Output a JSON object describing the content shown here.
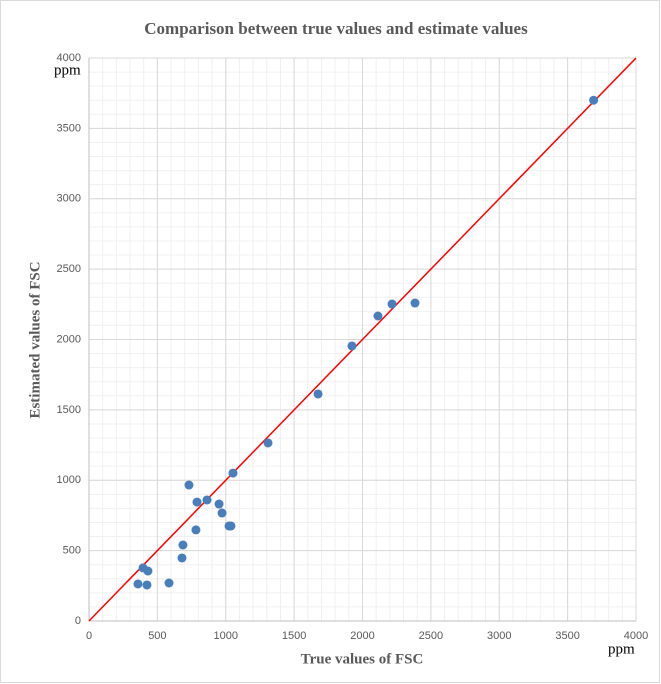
{
  "chart_data": {
    "type": "scatter",
    "title": "Comparison between true values and estimate values",
    "x_label": "True values of FSC",
    "y_label": "Estimated values of FSC",
    "x_unit": "ppm",
    "y_unit": "ppm",
    "x": [
      3690,
      2216,
      2384,
      2113,
      1923,
      1675,
      1309,
      1053,
      731,
      790,
      863,
      951,
      973,
      1024,
      1038,
      782,
      687,
      680,
      395,
      431,
      358,
      424,
      585
    ],
    "values": [
      3700,
      2252,
      2259,
      2167,
      1954,
      1613,
      1265,
      1051,
      966,
      845,
      860,
      831,
      767,
      675,
      675,
      647,
      540,
      448,
      377,
      355,
      263,
      256,
      270
    ],
    "color": "#4a7ebb",
    "xlim": [
      0,
      4000
    ],
    "ylim": [
      0,
      4000
    ],
    "xticks": [
      0,
      500,
      1000,
      1500,
      2000,
      2500,
      3000,
      3500,
      4000
    ],
    "yticks": [
      0,
      500,
      1000,
      1500,
      2000,
      2500,
      3000,
      3500,
      4000
    ],
    "grid": true,
    "minor_grid": true,
    "diagonal": true,
    "diagonal_color": "#ff0000"
  }
}
